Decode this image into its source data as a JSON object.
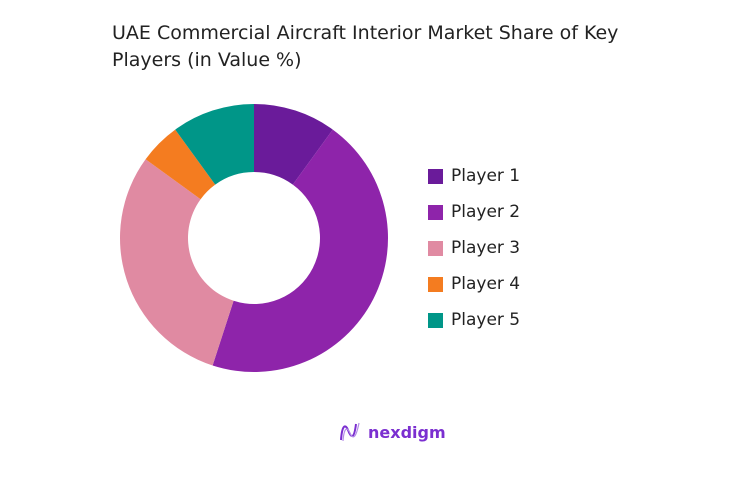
{
  "chart_data": {
    "type": "pie",
    "donut": true,
    "title": "UAE Commercial Aircraft Interior Market Share of Key Players (in Value %)",
    "categories": [
      "Player 1",
      "Player 2",
      "Player 3",
      "Player 4",
      "Player 5"
    ],
    "values": [
      10,
      45,
      30,
      5,
      10
    ],
    "colors": [
      "#6a1b9a",
      "#8e24aa",
      "#e08aa2",
      "#f47c20",
      "#009688"
    ],
    "legend_position": "right"
  },
  "branding": {
    "logo_text": "nexdigm"
  }
}
